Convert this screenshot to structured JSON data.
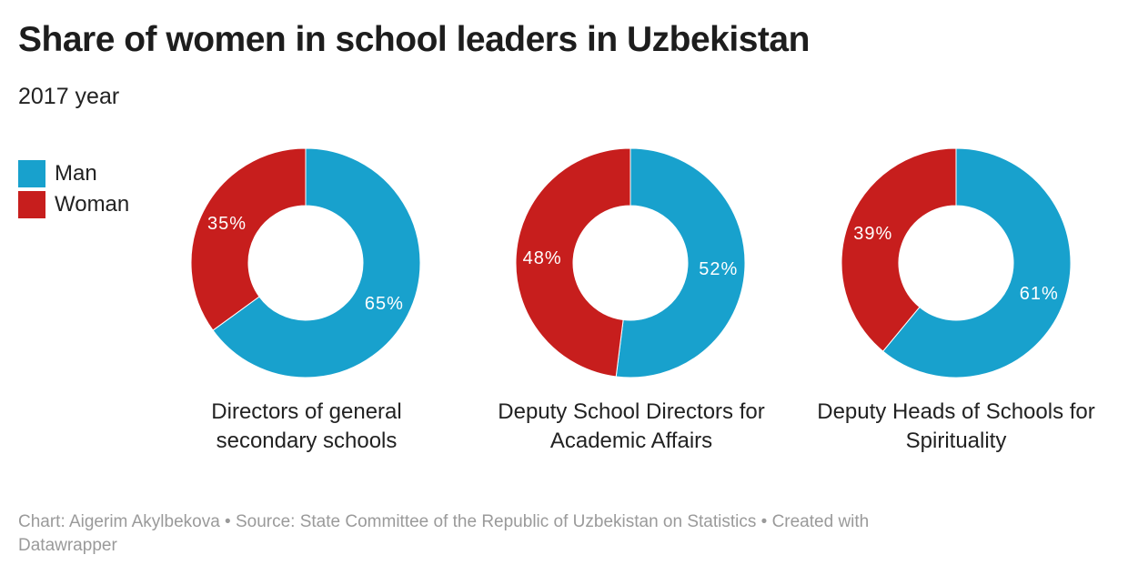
{
  "title": "Share of women in school leaders in Uzbekistan",
  "subtitle": "2017 year",
  "legend": [
    {
      "label": "Man",
      "color": "#18a1cd"
    },
    {
      "label": "Woman",
      "color": "#c71e1d"
    }
  ],
  "chart_data": [
    {
      "type": "pie",
      "variant": "donut",
      "title": "Directors of general secondary schools",
      "slices": [
        {
          "name": "Man",
          "value": 65,
          "label": "65%"
        },
        {
          "name": "Woman",
          "value": 35,
          "label": "35%"
        }
      ]
    },
    {
      "type": "pie",
      "variant": "donut",
      "title": "Deputy School Directors for Academic Affairs",
      "slices": [
        {
          "name": "Man",
          "value": 52,
          "label": "52%"
        },
        {
          "name": "Woman",
          "value": 48,
          "label": "48%"
        }
      ]
    },
    {
      "type": "pie",
      "variant": "donut",
      "title": "Deputy Heads of Schools for Spirituality",
      "slices": [
        {
          "name": "Man",
          "value": 61,
          "label": "61%"
        },
        {
          "name": "Woman",
          "value": 39,
          "label": "39%"
        }
      ]
    }
  ],
  "footer": {
    "credit": "Chart: Aigerim Akylbekova • Source: State Committee of the Republic of Uzbekistan on Statistics • Created with Datawrapper"
  }
}
